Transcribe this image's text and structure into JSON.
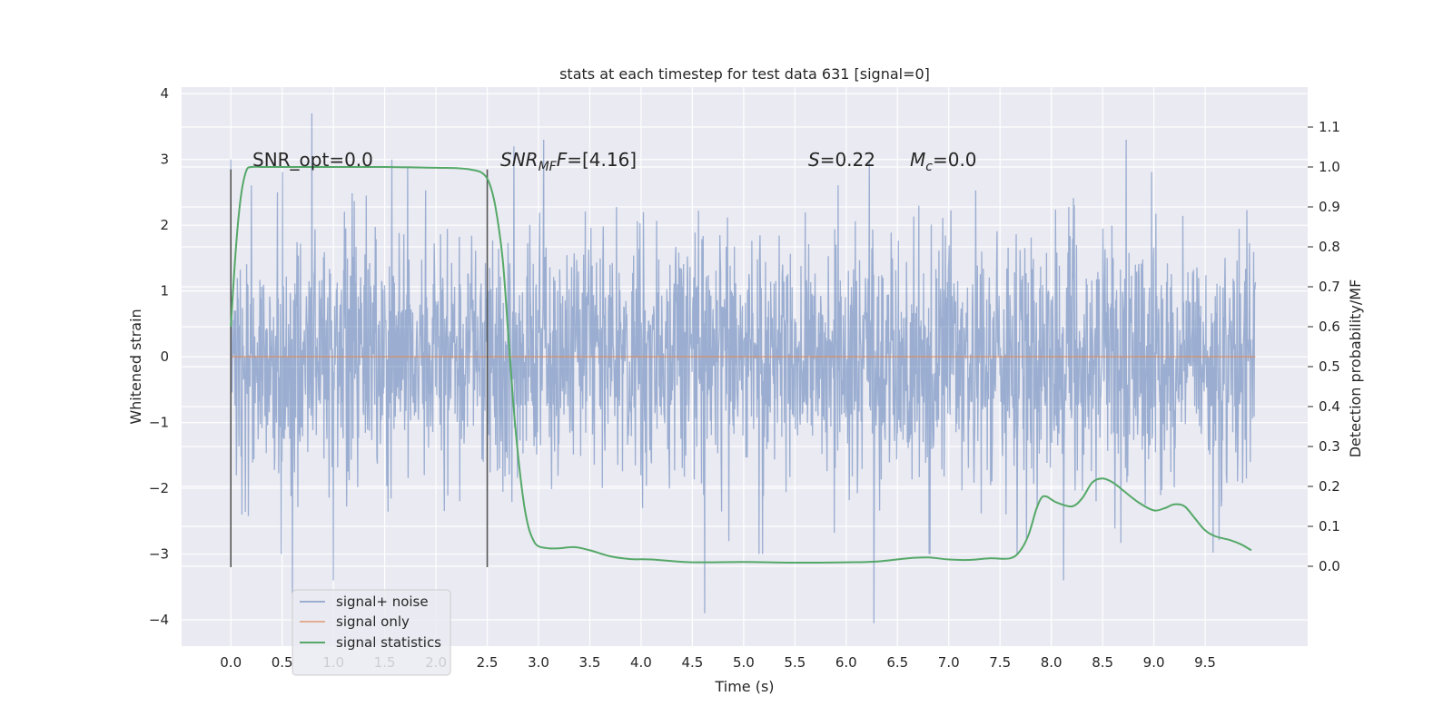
{
  "chart_data": {
    "type": "line",
    "title": "stats at each timestep for test data 631 [signal=0]",
    "xlabel": "Time (s)",
    "ylabel_left": "Whitened strain",
    "ylabel_right": "Detection probability/MF",
    "xlim": [
      -0.48,
      10.5
    ],
    "ylim_left": [
      -4.4,
      4.1
    ],
    "ylim_right": [
      -0.2,
      1.2
    ],
    "x_ticks": [
      "0.0",
      "0.5",
      "1.0",
      "1.5",
      "2.0",
      "2.5",
      "3.0",
      "3.5",
      "4.0",
      "4.5",
      "5.0",
      "5.5",
      "6.0",
      "6.5",
      "7.0",
      "7.5",
      "8.0",
      "8.5",
      "9.0",
      "9.5"
    ],
    "y_left_ticks": [
      "4",
      "3",
      "2",
      "1",
      "0",
      "−1",
      "−2",
      "−3",
      "−4"
    ],
    "y_right_ticks": [
      "1.1",
      "1.0",
      "0.9",
      "0.8",
      "0.7",
      "0.6",
      "0.5",
      "0.4",
      "0.3",
      "0.2",
      "0.1",
      "0.0"
    ],
    "grid": true,
    "legend_position": "lower-left",
    "legend": [
      "signal+ noise",
      "signal only",
      "signal statistics"
    ],
    "annotations": {
      "snr_opt": "SNR_opt=0.0",
      "snr_mf_prefix": "SNR",
      "snr_mf_sub": "MF",
      "snr_mf_suffix": "=[4.16]",
      "s_label": "S",
      "s_value": "=0.22",
      "mc_label": "M",
      "mc_sub": "c",
      "mc_value": "=0.0"
    },
    "vertical_markers": [
      0.0,
      2.5
    ],
    "series": [
      {
        "name": "signal+ noise",
        "axis": "left",
        "color": "#4c72b0",
        "t_start": 0.0,
        "t_end": 9.99,
        "envelope": [
          -2.2,
          2.2
        ],
        "extremes": [
          [
            0.79,
            3.7
          ],
          [
            0.6,
            -3.6
          ],
          [
            4.62,
            -3.9
          ],
          [
            6.27,
            -4.05
          ],
          [
            8.12,
            -3.4
          ],
          [
            2.76,
            3.2
          ],
          [
            3.05,
            3.3
          ],
          [
            8.73,
            3.3
          ],
          [
            1.0,
            -3.4
          ],
          [
            5.15,
            -3.0
          ]
        ]
      },
      {
        "name": "signal only",
        "axis": "left",
        "color": "#dd8452",
        "x": [
          0.0,
          9.99
        ],
        "y": [
          0.0,
          0.0
        ]
      },
      {
        "name": "signal statistics",
        "axis": "right",
        "color": "#55a868",
        "x": [
          0.0,
          0.05,
          0.1,
          0.15,
          0.2,
          0.3,
          0.5,
          1.0,
          1.5,
          2.0,
          2.2,
          2.35,
          2.45,
          2.52,
          2.58,
          2.65,
          2.7,
          2.75,
          2.8,
          2.85,
          2.9,
          2.95,
          3.0,
          3.1,
          3.2,
          3.35,
          3.5,
          3.7,
          3.9,
          4.1,
          4.5,
          5.0,
          5.5,
          6.0,
          6.3,
          6.6,
          6.8,
          7.0,
          7.2,
          7.4,
          7.6,
          7.7,
          7.78,
          7.85,
          7.9,
          7.95,
          8.05,
          8.2,
          8.3,
          8.4,
          8.5,
          8.6,
          8.7,
          8.85,
          9.0,
          9.1,
          9.2,
          9.3,
          9.4,
          9.5,
          9.6,
          9.75,
          9.85,
          9.95
        ],
        "y": [
          0.6,
          0.8,
          0.93,
          0.99,
          1.0,
          1.0,
          1.0,
          1.0,
          1.0,
          0.998,
          0.997,
          0.993,
          0.985,
          0.96,
          0.9,
          0.77,
          0.6,
          0.42,
          0.28,
          0.17,
          0.1,
          0.065,
          0.05,
          0.045,
          0.045,
          0.048,
          0.04,
          0.025,
          0.018,
          0.017,
          0.01,
          0.011,
          0.009,
          0.01,
          0.012,
          0.02,
          0.022,
          0.017,
          0.016,
          0.02,
          0.02,
          0.04,
          0.08,
          0.14,
          0.17,
          0.175,
          0.16,
          0.15,
          0.17,
          0.21,
          0.22,
          0.21,
          0.19,
          0.16,
          0.14,
          0.145,
          0.155,
          0.15,
          0.12,
          0.09,
          0.075,
          0.065,
          0.055,
          0.04
        ]
      }
    ]
  }
}
